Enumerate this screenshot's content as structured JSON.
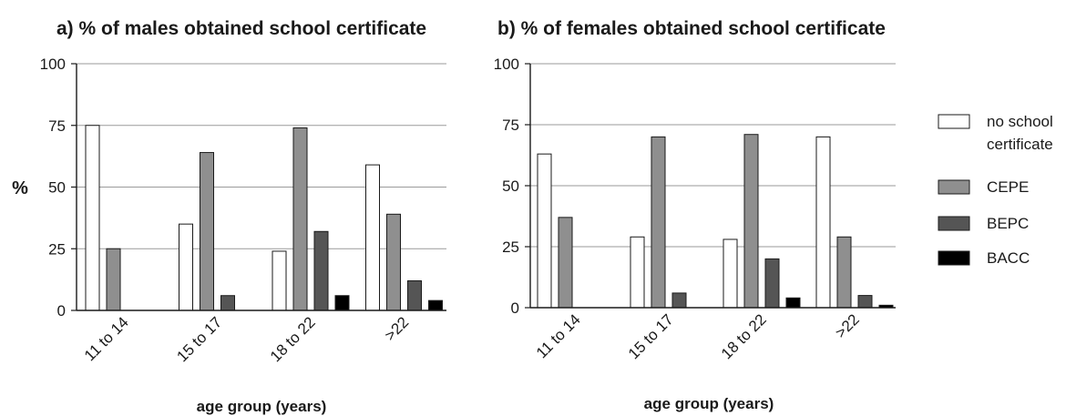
{
  "chart_data": [
    {
      "type": "bar",
      "title": "a) % of males obtained school certificate",
      "xlabel": "age group (years)",
      "ylabel": "%",
      "ylim": [
        0,
        100
      ],
      "yticks": [
        "0",
        "25",
        "50",
        "75",
        "100"
      ],
      "grid": "horizontal",
      "categories": [
        "11 to 14",
        "15 to 17",
        "18 to 22",
        ">22"
      ],
      "series": [
        {
          "name": "no school certificate",
          "color": "#ffffff",
          "values": [
            75,
            35,
            24,
            59
          ]
        },
        {
          "name": "CEPE",
          "color": "#8f8f8f",
          "values": [
            25,
            64,
            74,
            39
          ]
        },
        {
          "name": "BEPC",
          "color": "#555555",
          "values": [
            0,
            6,
            32,
            12
          ]
        },
        {
          "name": "BACC",
          "color": "#000000",
          "values": [
            0,
            0,
            6,
            4
          ]
        }
      ]
    },
    {
      "type": "bar",
      "title": "b) % of females obtained school certificate",
      "xlabel": "age group (years)",
      "ylabel": "",
      "ylim": [
        0,
        100
      ],
      "yticks": [
        "0",
        "25",
        "50",
        "75",
        "100"
      ],
      "grid": "horizontal",
      "categories": [
        "11 to 14",
        "15 to 17",
        "18 to 22",
        ">22"
      ],
      "series": [
        {
          "name": "no school certificate",
          "color": "#ffffff",
          "values": [
            63,
            29,
            28,
            70
          ]
        },
        {
          "name": "CEPE",
          "color": "#8f8f8f",
          "values": [
            37,
            70,
            71,
            29
          ]
        },
        {
          "name": "BEPC",
          "color": "#555555",
          "values": [
            0,
            6,
            20,
            5
          ]
        },
        {
          "name": "BACC",
          "color": "#000000",
          "values": [
            0,
            0,
            4,
            1
          ]
        }
      ]
    }
  ],
  "legend": {
    "placement": "right",
    "items": [
      {
        "lines": [
          "no school",
          "certificate"
        ],
        "color": "#ffffff"
      },
      {
        "lines": [
          "CEPE"
        ],
        "color": "#8f8f8f"
      },
      {
        "lines": [
          "BEPC"
        ],
        "color": "#555555"
      },
      {
        "lines": [
          "BACC"
        ],
        "color": "#000000"
      }
    ]
  }
}
